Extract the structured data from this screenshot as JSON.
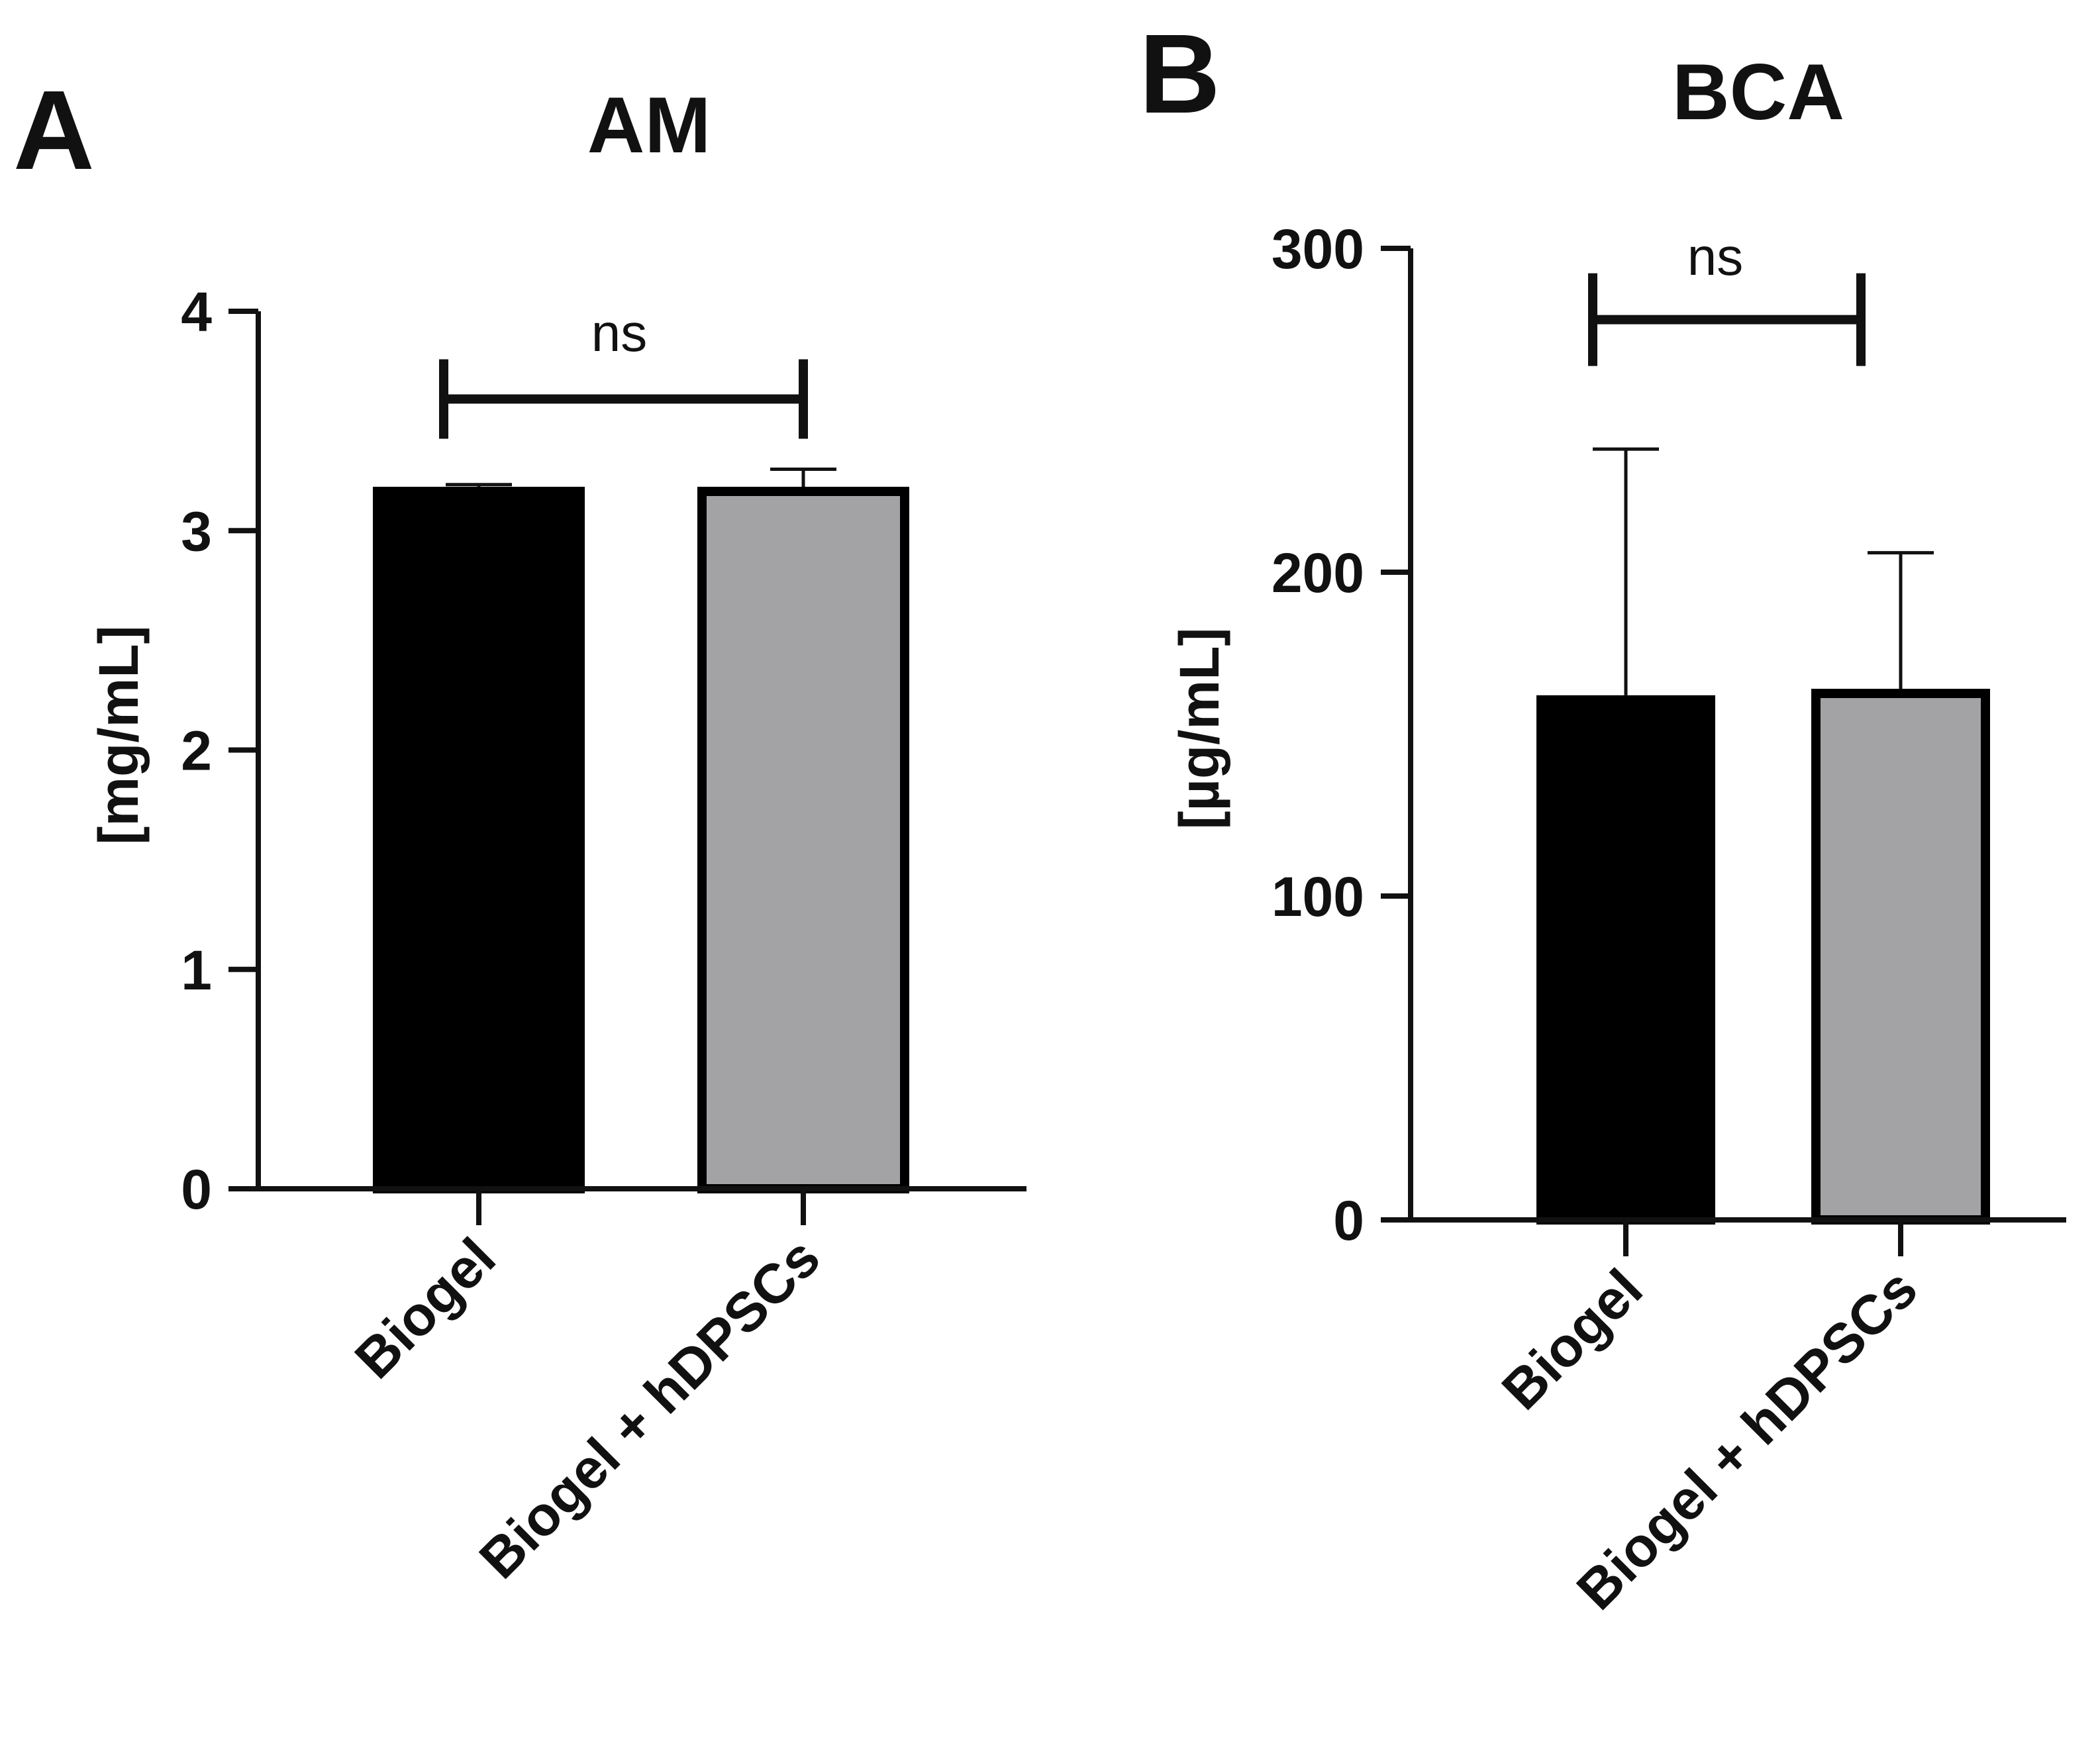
{
  "chart_data": [
    {
      "panel": "A",
      "type": "bar",
      "title": "AM",
      "xlabel": "",
      "ylabel": "[mg/mL]",
      "ylim": [
        0,
        4
      ],
      "yticks": [
        "0",
        "1",
        "2",
        "3",
        "4"
      ],
      "categories": [
        "Biogel",
        "Biogel + hDPSCs"
      ],
      "values": [
        3.2,
        3.2
      ],
      "error_upper": [
        3.21,
        3.28
      ],
      "bar_colors": [
        "#000000",
        "#a3a3a6"
      ],
      "significance": {
        "label": "ns",
        "y": 3.6
      },
      "grid": false
    },
    {
      "panel": "B",
      "type": "bar",
      "title": "BCA",
      "xlabel": "",
      "ylabel": "[µg/mL]",
      "ylim": [
        0,
        300
      ],
      "yticks": [
        "0",
        "100",
        "200",
        "300"
      ],
      "categories": [
        "Biogel",
        "Biogel + hDPSCs"
      ],
      "values": [
        162,
        164
      ],
      "error_upper": [
        238,
        206
      ],
      "bar_colors": [
        "#000000",
        "#a3a3a6"
      ],
      "significance": {
        "label": "ns",
        "y": 278
      },
      "grid": false
    }
  ]
}
